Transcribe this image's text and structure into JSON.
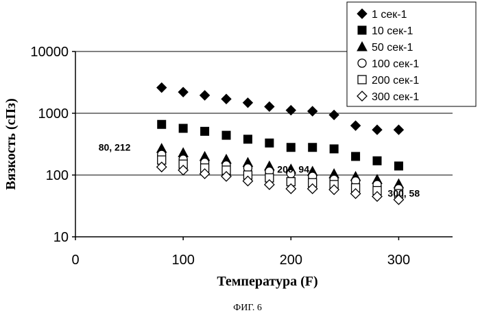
{
  "chart_data": {
    "type": "scatter",
    "xlabel": "Температура (F)",
    "ylabel": "Вязкость (сПз)",
    "xlim": [
      0,
      350
    ],
    "ylim": [
      10,
      10000
    ],
    "yscale": "log",
    "x_ticks": [
      "0",
      "100",
      "200",
      "300"
    ],
    "y_ticks": [
      "10",
      "100",
      "1000",
      "10000"
    ],
    "grid": "horizontal major lines",
    "legend_position": "top-right",
    "x": [
      80,
      100,
      120,
      140,
      160,
      180,
      200,
      220,
      240,
      260,
      280,
      300
    ],
    "series": [
      {
        "name": "1  сек-1",
        "marker": "diamond-filled",
        "values": [
          2600,
          2200,
          1950,
          1700,
          1480,
          1280,
          1120,
          1080,
          940,
          630,
          540,
          540
        ]
      },
      {
        "name": "10 сек-1",
        "marker": "square-filled",
        "values": [
          660,
          570,
          510,
          440,
          380,
          330,
          280,
          280,
          265,
          200,
          170,
          140
        ]
      },
      {
        "name": "50 сек-1",
        "marker": "triangle-filled",
        "values": [
          270,
          230,
          200,
          180,
          160,
          140,
          125,
          115,
          105,
          95,
          85,
          72
        ]
      },
      {
        "name": "100 сек-1",
        "marker": "circle-open",
        "values": [
          215,
          180,
          160,
          145,
          130,
          115,
          105,
          95,
          85,
          80,
          70,
          60
        ]
      },
      {
        "name": "200 сек-1",
        "marker": "square-open",
        "values": [
          175,
          150,
          130,
          120,
          100,
          90,
          78,
          75,
          70,
          62,
          56,
          50
        ]
      },
      {
        "name": "300 сек-1",
        "marker": "diamond-open",
        "values": [
          135,
          120,
          105,
          95,
          80,
          70,
          60,
          60,
          58,
          50,
          45,
          40
        ]
      }
    ],
    "annotations": [
      {
        "text": "80, 212",
        "x": 80,
        "y": 212
      },
      {
        "text": "200, 94",
        "x": 200,
        "y": 94
      },
      {
        "text": "300, 58",
        "x": 300,
        "y": 58
      }
    ]
  },
  "caption": "ФИГ. 6"
}
